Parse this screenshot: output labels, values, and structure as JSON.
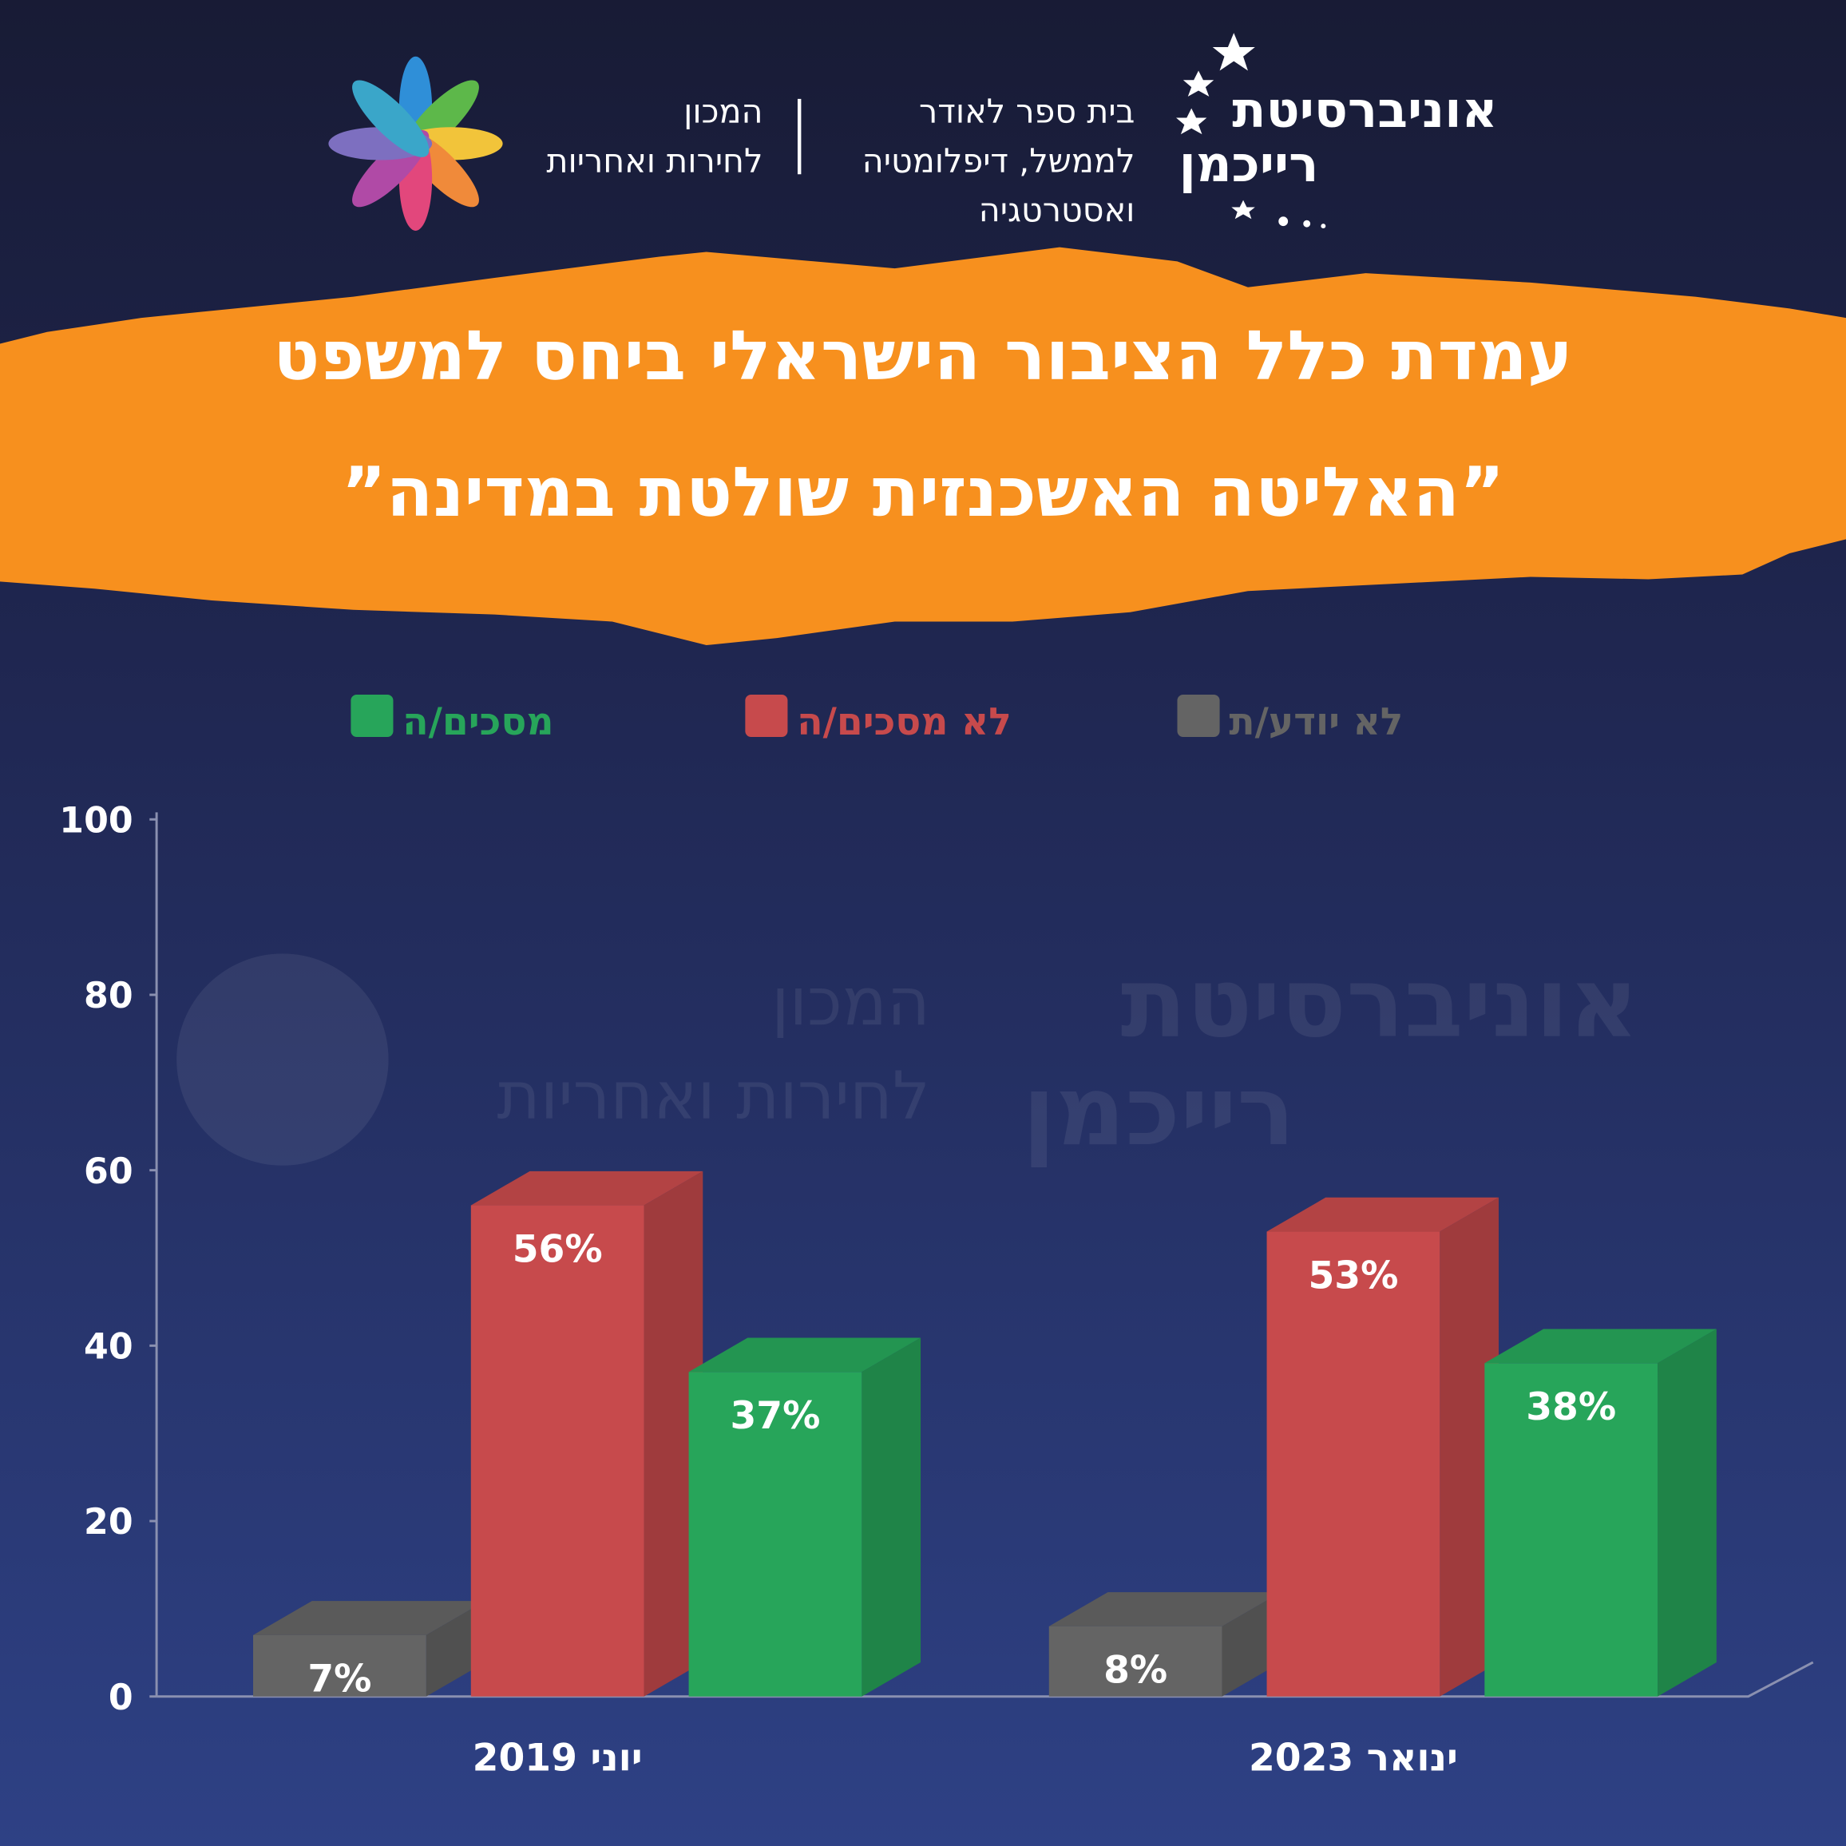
{
  "branding": {
    "university": [
      "אוניברסיטת",
      "רייכמן"
    ],
    "school": [
      "בית ספר לאודר",
      "לממשל, דיפלומטיה",
      "ואסטרטגיה"
    ],
    "institute": [
      "המכון",
      "לחירות ואחריות"
    ]
  },
  "chart_data": {
    "type": "bar3d",
    "title": [
      "עמדת כלל הציבור הישראלי ביחס למשפט",
      "”האליטה האשכנזית שולטת במדינה”"
    ],
    "categories": [
      "יוני 2019",
      "ינואר 2023"
    ],
    "series": [
      {
        "name": "לא יודע/ת",
        "color": "#646464",
        "values": [
          7,
          8
        ],
        "value_labels": [
          "7%",
          "8%"
        ]
      },
      {
        "name": "לא מסכים/ה",
        "color": "#c74a4c",
        "values": [
          56,
          53
        ],
        "value_labels": [
          "56%",
          "53%"
        ]
      },
      {
        "name": "מסכים/ה",
        "color": "#27a55a",
        "values": [
          37,
          38
        ],
        "value_labels": [
          "37%",
          "38%"
        ]
      }
    ],
    "ylim": [
      0,
      100
    ],
    "yticks": [
      0,
      20,
      40,
      60,
      80,
      100
    ]
  }
}
